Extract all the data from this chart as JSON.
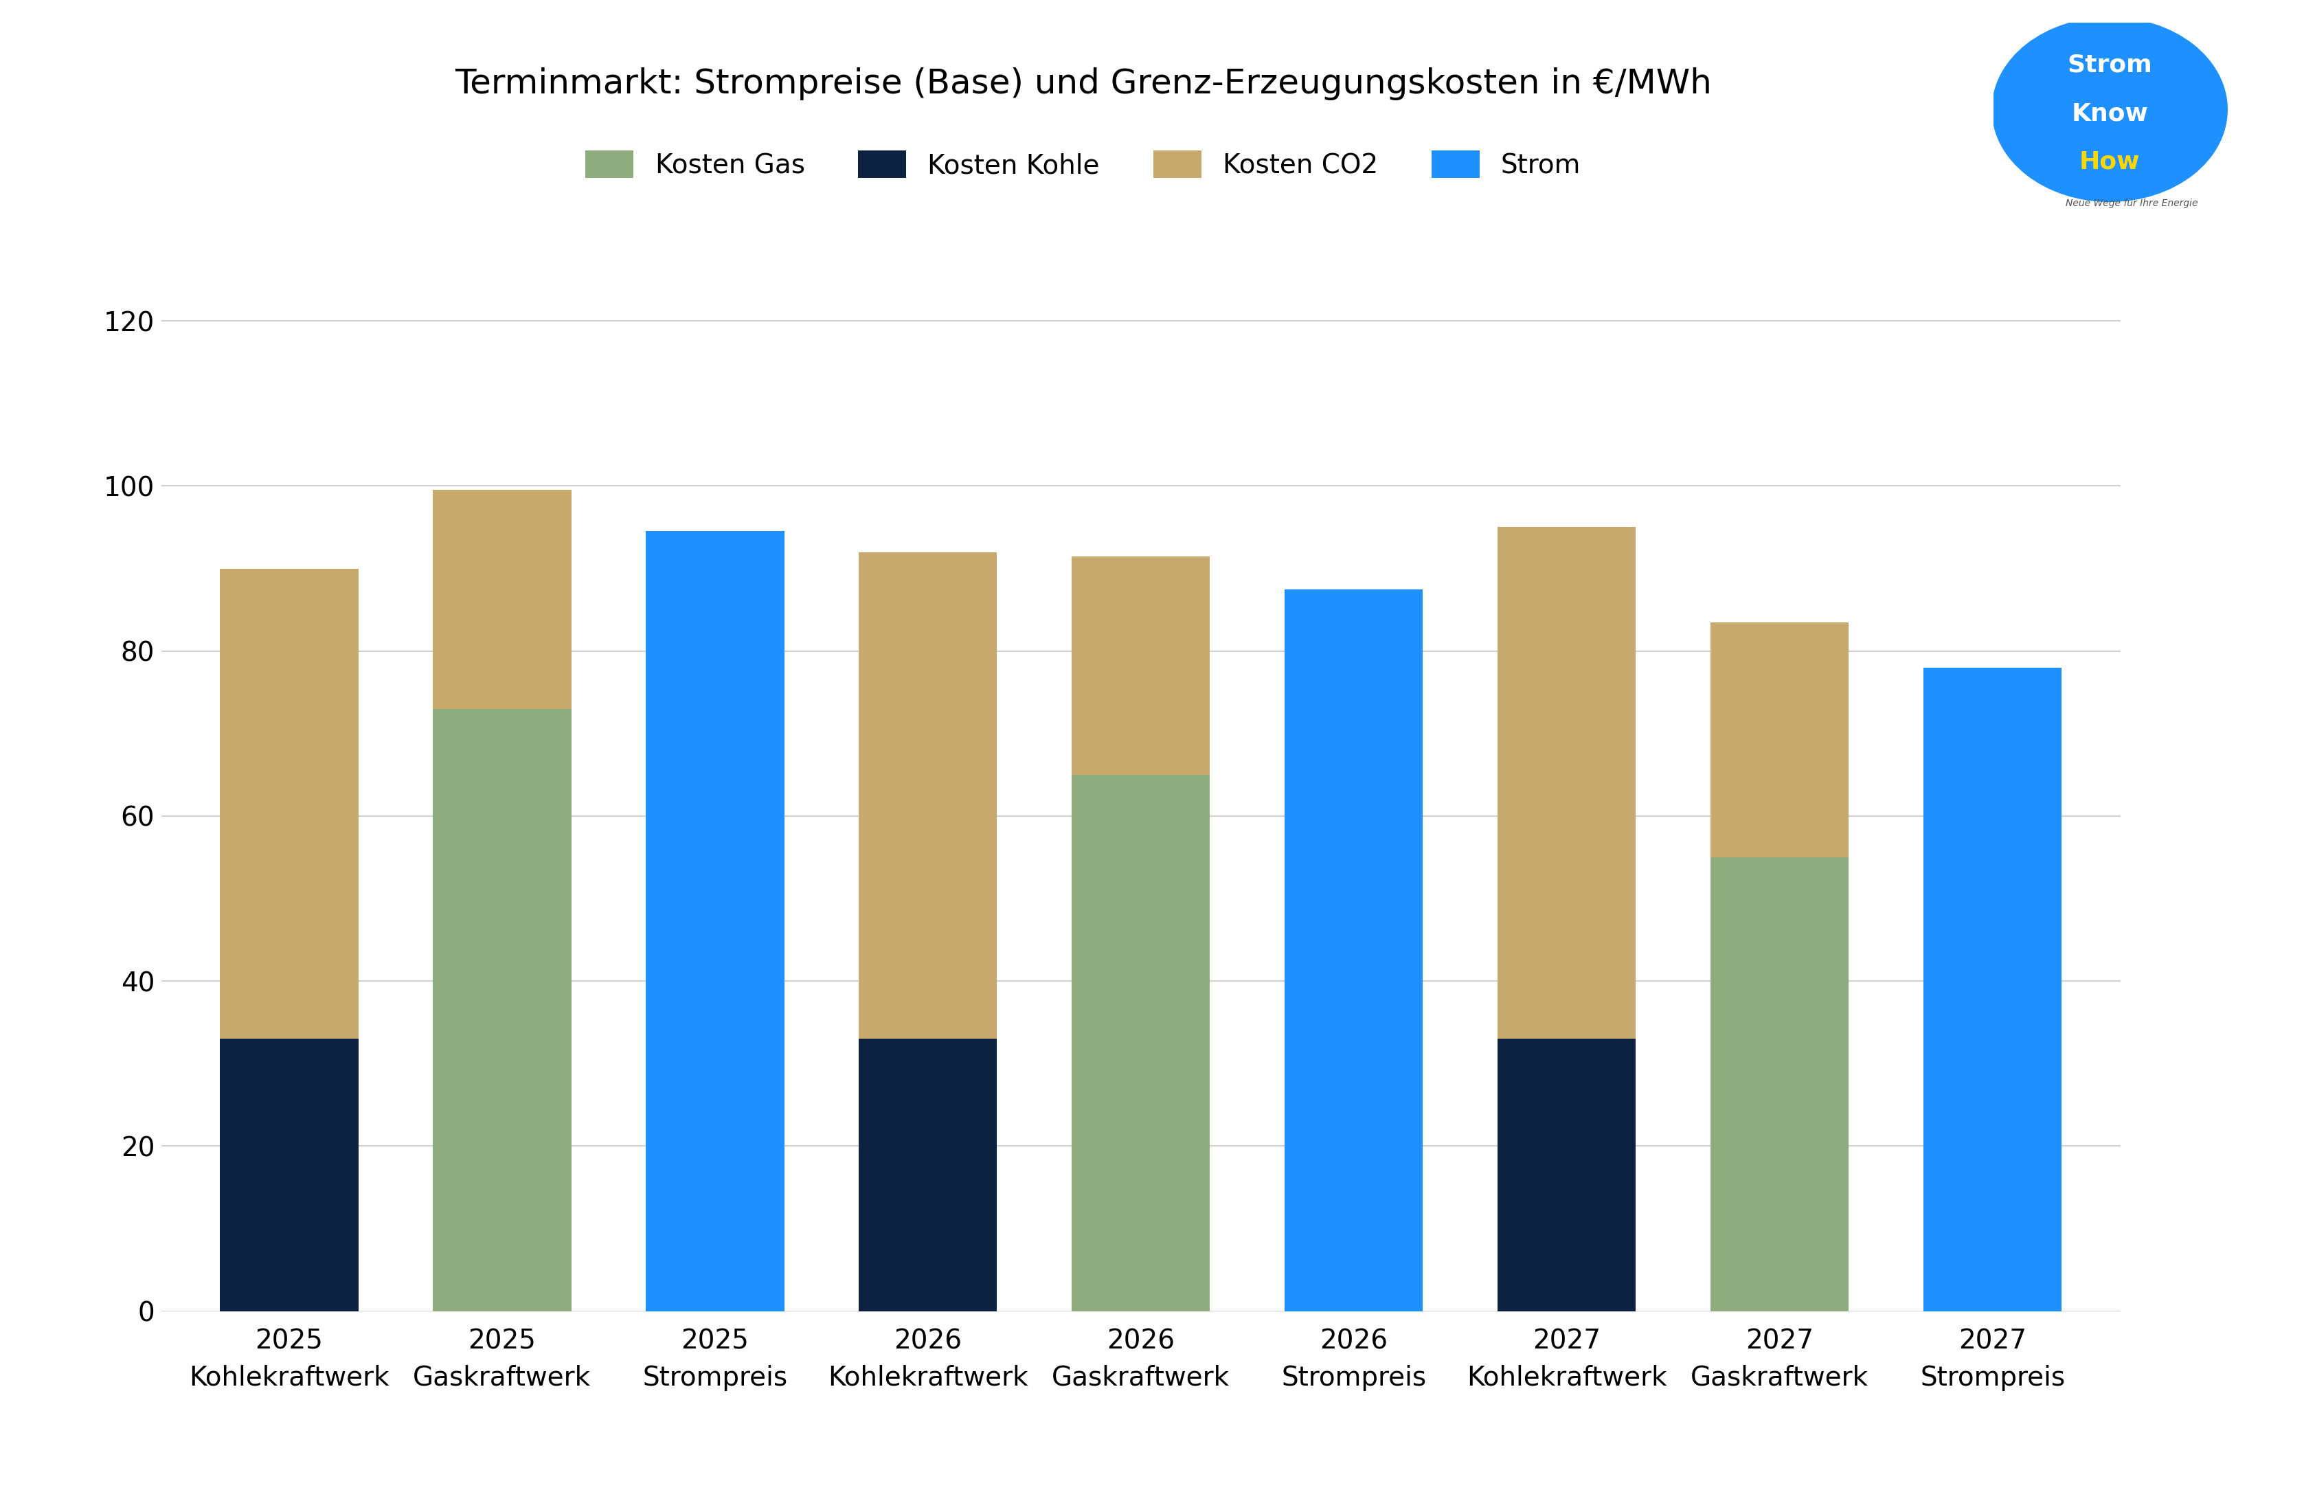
{
  "title": "Terminmarkt: Strompreise (Base) und Grenz-Erzeugungskosten in €/MWh",
  "categories": [
    "2025\nKohlekraftwerk",
    "2025\nGaskraftwerk",
    "2025\nStrompreis",
    "2026\nKohlekraftwerk",
    "2026\nGaskraftwerk",
    "2026\nStrompreis",
    "2027\nKohlekraftwerk",
    "2027\nGaskraftwerk",
    "2027\nStrompreis"
  ],
  "kosten_gas": [
    0,
    73.0,
    0,
    0,
    65.0,
    0,
    0,
    55.0,
    0
  ],
  "kosten_kohle": [
    33.0,
    0,
    0,
    33.0,
    0,
    0,
    33.0,
    0,
    0
  ],
  "kosten_co2": [
    57.0,
    26.5,
    0,
    59.0,
    26.5,
    0,
    62.0,
    28.5,
    0
  ],
  "strom": [
    0,
    0,
    94.5,
    0,
    0,
    87.5,
    0,
    0,
    78.0
  ],
  "color_gas": "#8fac7f",
  "color_kohle": "#0d2240",
  "color_co2": "#c8a96e",
  "color_strom": "#1e90ff",
  "ylim": [
    0,
    130
  ],
  "yticks": [
    0,
    20,
    40,
    60,
    80,
    100,
    120
  ],
  "legend_labels": [
    "Kosten Gas",
    "Kosten Kohle",
    "Kosten CO2",
    "Strom"
  ],
  "background_color": "#ffffff",
  "grid_color": "#d3d3d3",
  "bar_width": 0.65,
  "title_fontsize": 36,
  "tick_fontsize": 28,
  "legend_fontsize": 28
}
